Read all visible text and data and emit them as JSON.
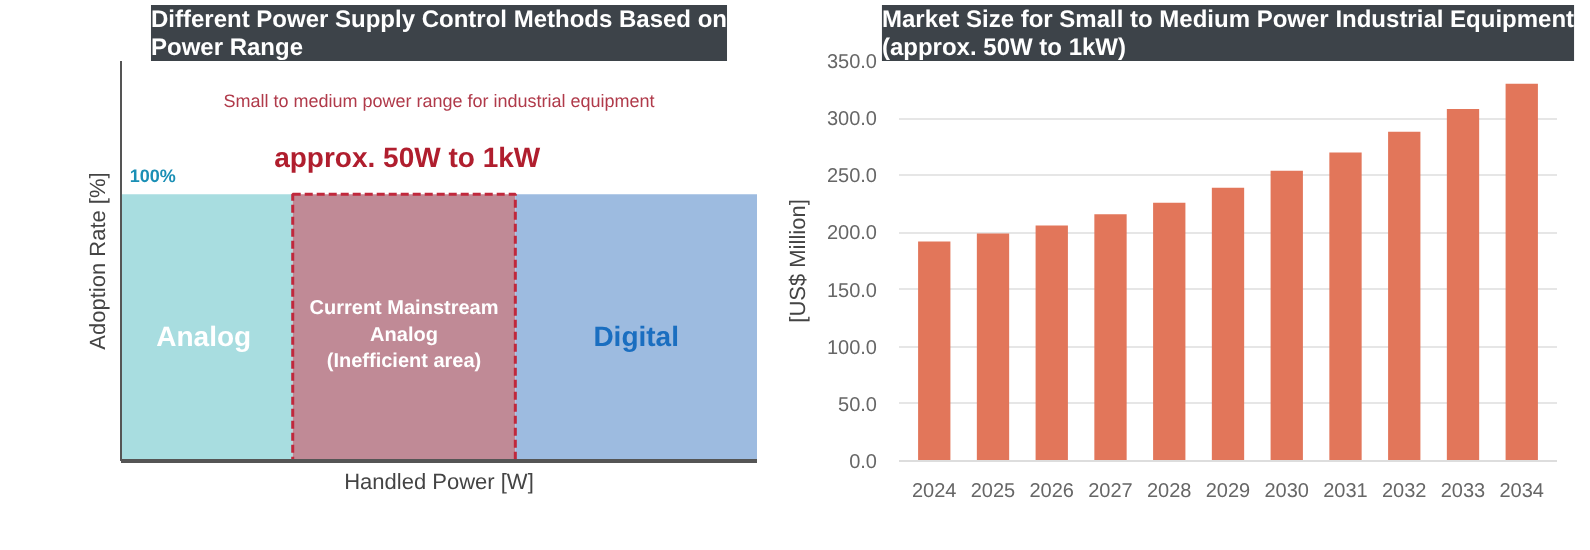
{
  "chart_data": [
    {
      "type": "other",
      "title": "Different Power Supply Control Methods Based on Power Range",
      "xlabel": "Handled Power [W]",
      "ylabel": "Adoption Rate [%]",
      "annotations": [
        "100%",
        "Small to medium power range for industrial equipment",
        "approx. 50W to 1kW",
        "Analog",
        "Current Mainstream Analog (Inefficient area)",
        "Digital"
      ]
    },
    {
      "type": "bar",
      "title": "Market Size for Small to Medium Power Industrial Equipment (approx. 50W to 1kW)",
      "ylabel": "[US$ Million]",
      "categories": [
        "2024",
        "2025",
        "2026",
        "2027",
        "2028",
        "2029",
        "2030",
        "2031",
        "2032",
        "2033",
        "2034"
      ],
      "values": [
        192,
        199,
        206,
        216,
        226,
        239,
        254,
        270,
        288,
        308,
        330
      ],
      "color": "#e2765a",
      "ylim": [
        0,
        350
      ],
      "yticks": [
        {
          "value": 0,
          "label": "0.0"
        },
        {
          "value": 50,
          "label": "50.0"
        },
        {
          "value": 100,
          "label": "100.0"
        },
        {
          "value": 150,
          "label": "150.0"
        },
        {
          "value": 200,
          "label": "200.0"
        },
        {
          "value": 250,
          "label": "250.0"
        },
        {
          "value": 300,
          "label": "300.0"
        },
        {
          "value": 350,
          "label": "350.0"
        }
      ],
      "grid": "y"
    }
  ]
}
